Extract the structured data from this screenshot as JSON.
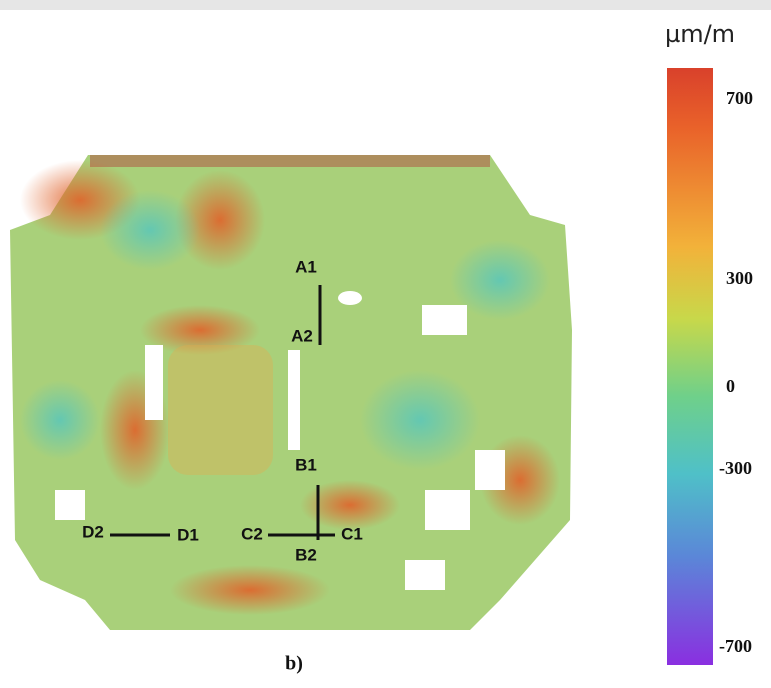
{
  "unit": "µm/m",
  "colorbar": {
    "ticks": [
      "700",
      "300",
      "0",
      "-300",
      "-700"
    ]
  },
  "panel_label": "b)",
  "points": {
    "A1": "A1",
    "A2": "A2",
    "B1": "B1",
    "B2": "B2",
    "C1": "C1",
    "C2": "C2",
    "D1": "D1",
    "D2": "D2"
  }
}
